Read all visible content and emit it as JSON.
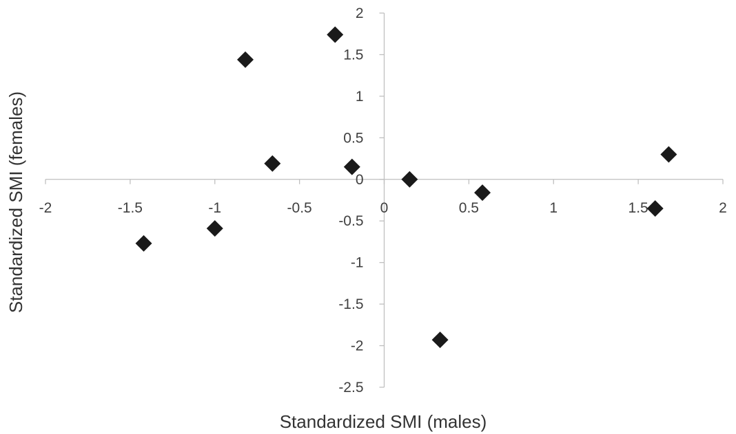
{
  "chart_data": {
    "type": "scatter",
    "title": "",
    "xlabel": "Standardized SMI (males)",
    "ylabel": "Standardized SMI (females)",
    "xlim": [
      -2,
      2
    ],
    "ylim": [
      -2.5,
      2
    ],
    "x_ticks": [
      -2,
      -1.5,
      -1,
      -0.5,
      0,
      0.5,
      1,
      1.5,
      2
    ],
    "x_tick_labels": [
      "-2",
      "-1.5",
      "-1",
      "-0.5",
      "0",
      "0.5",
      "1",
      "1.5",
      "2"
    ],
    "y_ticks": [
      -2.5,
      -2,
      -1.5,
      -1,
      -0.5,
      0,
      0.5,
      1,
      1.5,
      2
    ],
    "y_tick_labels": [
      "-2.5",
      "-2",
      "-1.5",
      "-1",
      "-0.5",
      "0",
      "0.5",
      "1",
      "1.5",
      "2"
    ],
    "grid": false,
    "marker": "diamond",
    "marker_color": "#1a1a1a",
    "axis_color": "#bfbfbf",
    "points": [
      {
        "x": -1.42,
        "y": -0.77
      },
      {
        "x": -1.0,
        "y": -0.59
      },
      {
        "x": -0.82,
        "y": 1.44
      },
      {
        "x": -0.66,
        "y": 0.19
      },
      {
        "x": -0.29,
        "y": 1.74
      },
      {
        "x": -0.19,
        "y": 0.15
      },
      {
        "x": 0.15,
        "y": 0.0
      },
      {
        "x": 0.33,
        "y": -1.93
      },
      {
        "x": 0.58,
        "y": -0.16
      },
      {
        "x": 1.6,
        "y": -0.35
      },
      {
        "x": 1.68,
        "y": 0.3
      }
    ]
  }
}
